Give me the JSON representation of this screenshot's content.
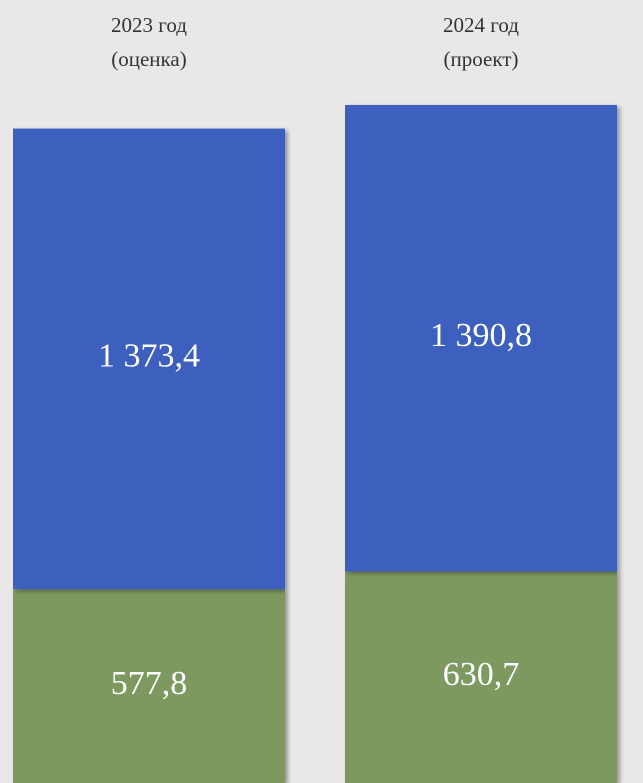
{
  "chart_data": {
    "type": "stacked_bar",
    "categories": [
      "2023 год\n(оценка)",
      "2024 год\n(проект)"
    ],
    "series": [
      {
        "color": "#7d9960",
        "values": [
          577.8,
          630.7
        ],
        "value_labels": [
          "577,8",
          "630,7"
        ]
      },
      {
        "color": "#3c5fbe",
        "values": [
          1373.4,
          1390.8
        ],
        "value_labels": [
          "1 373,4",
          "1 390,8"
        ]
      }
    ]
  }
}
